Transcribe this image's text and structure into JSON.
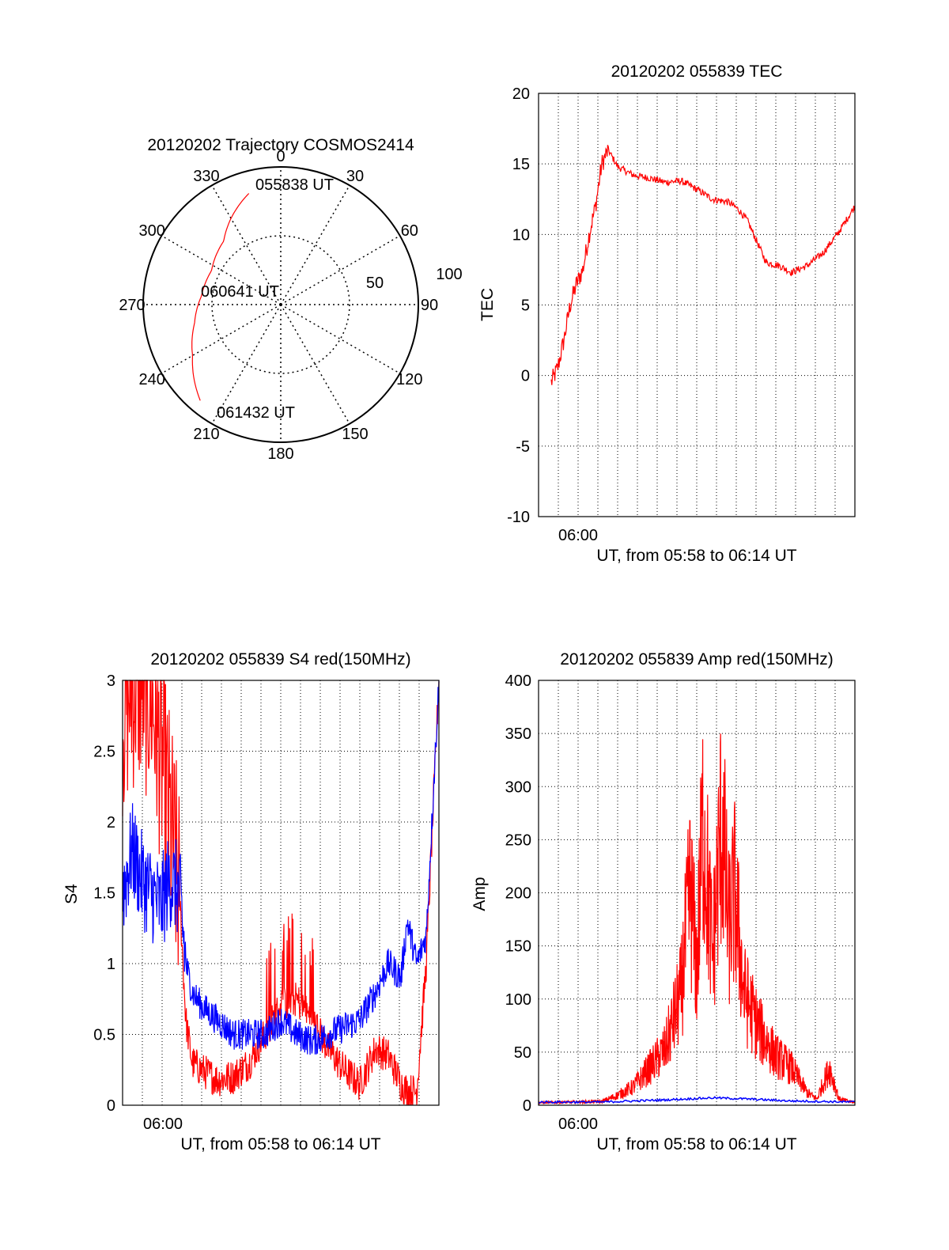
{
  "colors": {
    "red": "#ff0000",
    "blue": "#0000ff",
    "axis": "#000000"
  },
  "chart_data": [
    {
      "id": "polar",
      "type": "polar",
      "title": "20120202 Trajectory COSMOS2414",
      "azimuth_labels": [
        "0",
        "30",
        "60",
        "90",
        "120",
        "150",
        "180",
        "210",
        "240",
        "270",
        "300",
        "330"
      ],
      "radial_labels": [
        "50",
        "100"
      ],
      "radial_range": [
        0,
        100
      ],
      "time_labels": {
        "start": "055838 UT",
        "mid": "060641 UT",
        "end": "061432 UT"
      },
      "trajectory": [
        {
          "az": 344,
          "r": 84
        },
        {
          "az": 332,
          "r": 74
        },
        {
          "az": 318,
          "r": 62
        },
        {
          "az": 296,
          "r": 56
        },
        {
          "az": 276,
          "r": 58
        },
        {
          "az": 258,
          "r": 64
        },
        {
          "az": 240,
          "r": 74
        },
        {
          "az": 220,
          "r": 91
        }
      ]
    },
    {
      "id": "tec",
      "type": "line",
      "title": "20120202 055839 TEC",
      "xlabel": "UT, from 05:58 to 06:14 UT",
      "ylabel": "TEC",
      "xlim": [
        0,
        1
      ],
      "ylim": [
        -10,
        20
      ],
      "yticks": [
        "-10",
        "-5",
        "0",
        "5",
        "10",
        "15",
        "20"
      ],
      "xtick_label": "06:00",
      "series": [
        {
          "name": "TEC",
          "color": "red",
          "x": [
            0.04,
            0.06,
            0.08,
            0.1,
            0.12,
            0.14,
            0.16,
            0.18,
            0.2,
            0.22,
            0.25,
            0.3,
            0.35,
            0.4,
            0.45,
            0.5,
            0.55,
            0.6,
            0.63,
            0.66,
            0.69,
            0.72,
            0.76,
            0.8,
            0.85,
            0.9,
            0.95,
            1.0
          ],
          "y": [
            -0.5,
            0.5,
            2.5,
            5,
            6.5,
            7.5,
            10,
            12,
            15,
            16,
            14.8,
            14.2,
            14,
            13.7,
            13.8,
            13.2,
            12.5,
            12.3,
            11.8,
            11,
            9.5,
            8,
            7.8,
            7.3,
            7.8,
            8.7,
            10.2,
            12
          ]
        }
      ]
    },
    {
      "id": "s4",
      "type": "line",
      "title": "20120202 055839 S4 red(150MHz)",
      "xlabel": "UT, from 05:58 to 06:14 UT",
      "ylabel": "S4",
      "xlim": [
        0,
        1
      ],
      "ylim": [
        0,
        3
      ],
      "yticks": [
        "0",
        "0.5",
        "1",
        "1.5",
        "2",
        "2.5",
        "3"
      ],
      "xtick_label": "06:00",
      "series": [
        {
          "name": "red",
          "color": "red",
          "x": [
            0.0,
            0.03,
            0.06,
            0.09,
            0.12,
            0.15,
            0.18,
            0.2,
            0.22,
            0.25,
            0.3,
            0.35,
            0.4,
            0.45,
            0.5,
            0.55,
            0.6,
            0.65,
            0.7,
            0.75,
            0.78,
            0.8,
            0.84,
            0.88,
            0.9,
            0.93,
            0.96,
            1.0
          ],
          "y": [
            2.8,
            3,
            3,
            2.9,
            2.5,
            2.0,
            1.5,
            0.6,
            0.3,
            0.25,
            0.18,
            0.2,
            0.3,
            0.5,
            0.7,
            0.75,
            0.6,
            0.4,
            0.25,
            0.15,
            0.3,
            0.4,
            0.35,
            0.15,
            0.1,
            0.1,
            1.0,
            3
          ]
        },
        {
          "name": "blue",
          "color": "blue",
          "x": [
            0.0,
            0.03,
            0.06,
            0.09,
            0.12,
            0.15,
            0.18,
            0.2,
            0.22,
            0.25,
            0.3,
            0.35,
            0.4,
            0.45,
            0.5,
            0.55,
            0.6,
            0.65,
            0.7,
            0.75,
            0.8,
            0.84,
            0.88,
            0.9,
            0.93,
            0.96,
            1.0
          ],
          "y": [
            1.5,
            1.8,
            1.6,
            1.5,
            1.4,
            1.6,
            1.5,
            1.0,
            0.8,
            0.7,
            0.6,
            0.5,
            0.5,
            0.5,
            0.6,
            0.5,
            0.45,
            0.5,
            0.55,
            0.6,
            0.8,
            1.0,
            0.9,
            1.3,
            1.0,
            1.2,
            3
          ]
        }
      ]
    },
    {
      "id": "amp",
      "type": "line",
      "title": "20120202 055839 Amp red(150MHz)",
      "xlabel": "UT, from 05:58 to 06:14 UT",
      "ylabel": "Amp",
      "xlim": [
        0,
        1
      ],
      "ylim": [
        0,
        400
      ],
      "yticks": [
        "0",
        "50",
        "100",
        "150",
        "200",
        "250",
        "300",
        "350",
        "400"
      ],
      "xtick_label": "06:00",
      "series": [
        {
          "name": "red",
          "color": "red",
          "x": [
            0.0,
            0.2,
            0.25,
            0.3,
            0.35,
            0.4,
            0.45,
            0.48,
            0.5,
            0.52,
            0.55,
            0.58,
            0.6,
            0.62,
            0.65,
            0.7,
            0.75,
            0.8,
            0.85,
            0.88,
            0.9,
            0.92,
            0.95,
            1.0
          ],
          "y": [
            2,
            3,
            8,
            15,
            30,
            45,
            90,
            175,
            110,
            230,
            120,
            235,
            140,
            170,
            90,
            60,
            40,
            30,
            10,
            5,
            18,
            30,
            5,
            2
          ]
        },
        {
          "name": "blue",
          "color": "blue",
          "x": [
            0.0,
            0.2,
            0.4,
            0.55,
            0.65,
            0.8,
            1.0
          ],
          "y": [
            2,
            2,
            4,
            6,
            5,
            3,
            2
          ]
        }
      ]
    }
  ]
}
